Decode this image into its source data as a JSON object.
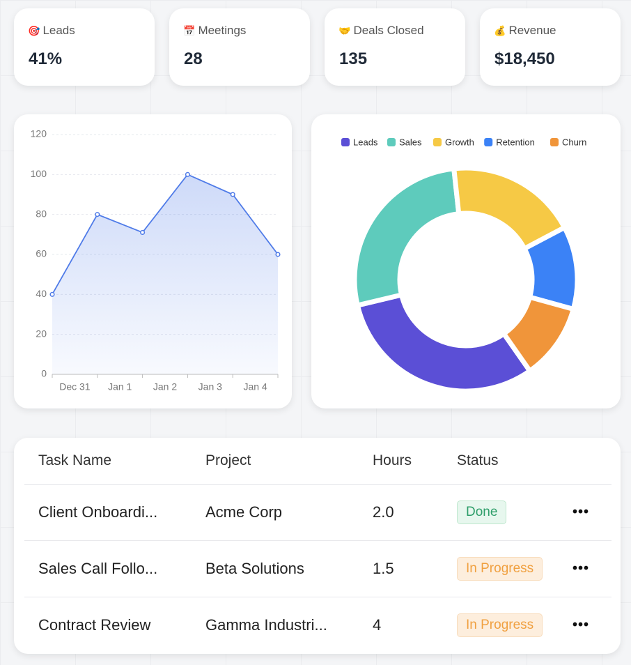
{
  "stats": [
    {
      "icon": "🎯",
      "label": "Leads",
      "value": "41%"
    },
    {
      "icon": "📅",
      "label": "Meetings",
      "value": "28"
    },
    {
      "icon": "🤝",
      "label": "Deals Closed",
      "value": "135"
    },
    {
      "icon": "💰",
      "label": "Revenue",
      "value": "$18,450"
    }
  ],
  "chart_data": [
    {
      "type": "line",
      "xticks": [
        "Dec 31",
        "Jan 1",
        "Jan 2",
        "Jan 3",
        "Jan 4"
      ],
      "values": [
        40,
        80,
        71,
        100,
        90,
        60
      ],
      "color": "#4f7be8",
      "ylim": [
        0,
        120
      ],
      "yticks": [
        0,
        20,
        40,
        60,
        80,
        100,
        120
      ],
      "grid": true
    },
    {
      "type": "pie",
      "categories": [
        "Leads",
        "Sales",
        "Growth",
        "Retention",
        "Churn"
      ],
      "values": [
        31,
        27,
        19,
        12,
        11
      ],
      "colors": [
        "#5b4fd6",
        "#5ecbbc",
        "#f6c945",
        "#3b82f6",
        "#f0953a"
      ],
      "legend": "top"
    }
  ],
  "table": {
    "headers": [
      "Task Name",
      "Project",
      "Hours",
      "Status"
    ],
    "rows": [
      [
        "Client Onboardi...",
        "Acme Corp",
        "2.0",
        "Done"
      ],
      [
        "Sales Call Follo...",
        "Beta Solutions",
        "1.5",
        "In Progress"
      ],
      [
        "Contract Review",
        "Gamma Industri...",
        "4",
        "In Progress"
      ]
    ]
  }
}
